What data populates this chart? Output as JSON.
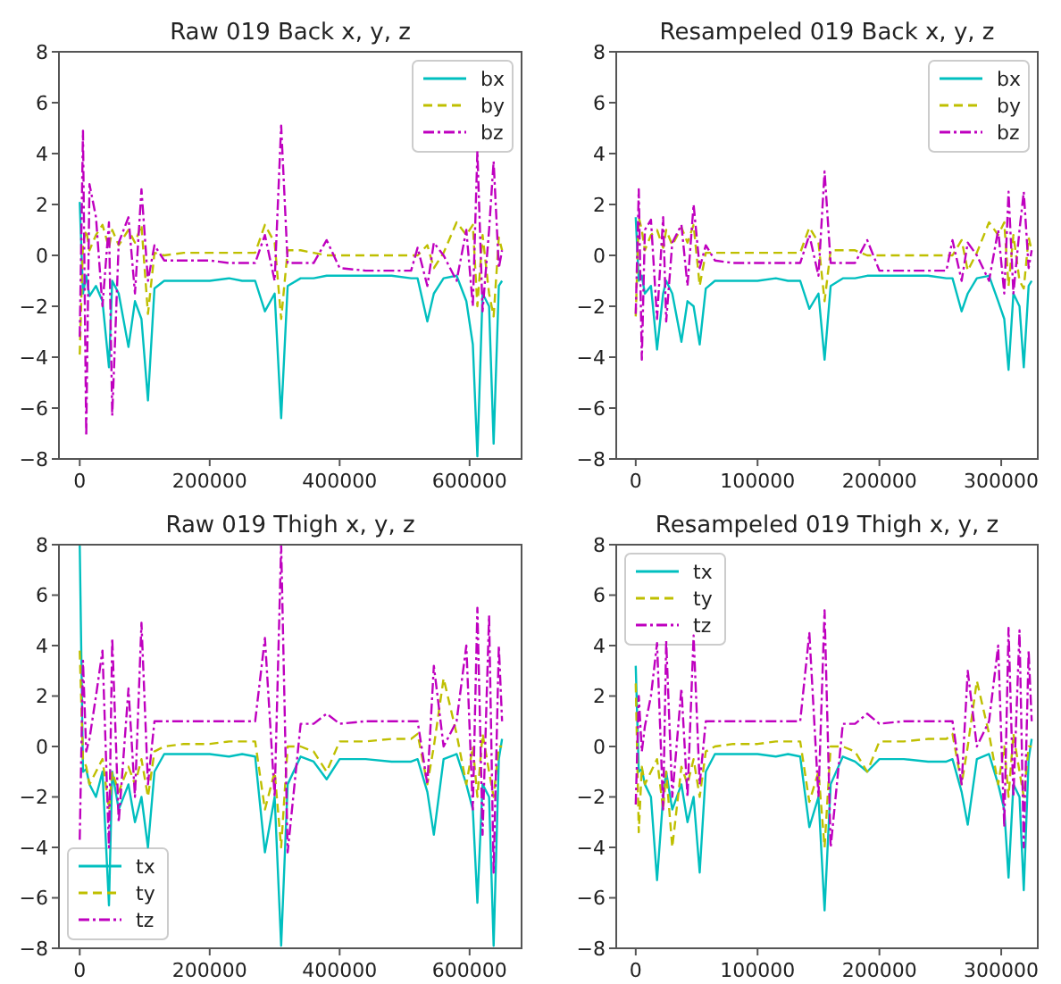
{
  "chart_data": [
    {
      "type": "line",
      "title": "Raw 019 Back x, y, z",
      "legend": "top right",
      "x": [
        0,
        5000,
        10000,
        15000,
        25000,
        35000,
        45000,
        50000,
        60000,
        75000,
        85000,
        95000,
        105000,
        115000,
        130000,
        160000,
        200000,
        230000,
        250000,
        270000,
        285000,
        300000,
        310000,
        320000,
        340000,
        360000,
        380000,
        400000,
        440000,
        480000,
        510000,
        520000,
        535000,
        545000,
        560000,
        580000,
        595000,
        605000,
        612000,
        620000,
        630000,
        637000,
        645000,
        650000
      ],
      "xlim": [
        -32000,
        680000
      ],
      "xticks": [
        0,
        200000,
        400000,
        600000
      ],
      "ylim": [
        -8,
        8
      ],
      "yticks": [
        {
          "value": -8,
          "label": "−8"
        },
        {
          "value": -6,
          "label": "−6"
        },
        {
          "value": -4,
          "label": "−4"
        },
        {
          "value": -2,
          "label": "−2"
        },
        0,
        2,
        4,
        6,
        8
      ],
      "series": [
        {
          "name": "bx",
          "color": "#00bfbf",
          "line_style": "solid",
          "values": [
            2.1,
            -1.5,
            -0.8,
            -1.6,
            -1.2,
            -1.8,
            -4.4,
            -1.0,
            -1.5,
            -3.6,
            -1.8,
            -2.5,
            -5.7,
            -1.3,
            -1.0,
            -1.0,
            -1.0,
            -0.9,
            -1.0,
            -1.0,
            -2.2,
            -1.5,
            -6.4,
            -1.2,
            -0.9,
            -0.9,
            -0.8,
            -0.8,
            -0.8,
            -0.8,
            -0.9,
            -0.9,
            -2.6,
            -1.5,
            -0.9,
            -0.8,
            -1.8,
            -3.5,
            -7.9,
            -1.5,
            -2.0,
            -7.4,
            -1.2,
            -1.0
          ]
        },
        {
          "name": "by",
          "color": "#bfbf00",
          "line_style": "dashed",
          "values": [
            -3.9,
            0.5,
            1.0,
            0.2,
            0.8,
            1.2,
            0.3,
            1.0,
            0.4,
            1.0,
            0.5,
            1.2,
            -2.3,
            0.1,
            0.0,
            0.1,
            0.1,
            0.1,
            0.1,
            0.1,
            1.2,
            0.5,
            -2.5,
            0.2,
            0.2,
            0.1,
            0.0,
            0.0,
            0.0,
            0.0,
            0.0,
            0.0,
            0.4,
            -0.5,
            0.1,
            1.3,
            0.8,
            1.2,
            -2.0,
            0.8,
            -1.5,
            -2.4,
            0.7,
            0.2
          ]
        },
        {
          "name": "bz",
          "color": "#bf00bf",
          "line_style": "dashdot",
          "values": [
            -3.2,
            4.9,
            -7.1,
            2.8,
            1.5,
            -2.0,
            1.3,
            -6.3,
            0.5,
            1.5,
            -1.5,
            2.6,
            -1.0,
            0.4,
            -0.2,
            -0.2,
            -0.2,
            -0.3,
            -0.3,
            -0.3,
            0.8,
            -1.0,
            5.1,
            -0.3,
            -0.3,
            -0.3,
            0.6,
            -0.5,
            -0.6,
            -0.6,
            -0.6,
            0.3,
            -1.2,
            0.5,
            0.0,
            -1.0,
            1.0,
            -2.0,
            4.1,
            -2.2,
            1.0,
            3.7,
            -0.5,
            0.2
          ]
        }
      ]
    },
    {
      "type": "line",
      "title": "Resampeled 019 Back x, y, z",
      "legend": "top right",
      "x": [
        0,
        2500,
        5000,
        7500,
        12500,
        17500,
        22500,
        25000,
        30000,
        37500,
        42500,
        47500,
        52500,
        57500,
        65000,
        80000,
        100000,
        115000,
        125000,
        135000,
        142500,
        150000,
        155000,
        160000,
        170000,
        180000,
        190000,
        200000,
        220000,
        240000,
        255000,
        260000,
        267500,
        272500,
        280000,
        290000,
        297500,
        302500,
        306000,
        310000,
        315000,
        318500,
        322500,
        325000
      ],
      "xlim": [
        -16000,
        330000
      ],
      "xticks": [
        0,
        100000,
        200000,
        300000
      ],
      "ylim": [
        -8,
        8
      ],
      "yticks": [
        {
          "value": -8,
          "label": "−8"
        },
        {
          "value": -6,
          "label": "−6"
        },
        {
          "value": -4,
          "label": "−4"
        },
        {
          "value": -2,
          "label": "−2"
        },
        0,
        2,
        4,
        6,
        8
      ],
      "series": [
        {
          "name": "bx",
          "color": "#00bfbf",
          "line_style": "solid",
          "values": [
            1.5,
            -1.0,
            -0.8,
            -1.5,
            -1.2,
            -3.7,
            -1.5,
            -1.0,
            -1.5,
            -3.4,
            -1.8,
            -2.0,
            -3.5,
            -1.3,
            -1.0,
            -1.0,
            -1.0,
            -0.9,
            -1.0,
            -1.0,
            -2.1,
            -1.5,
            -4.1,
            -1.2,
            -0.9,
            -0.9,
            -0.8,
            -0.8,
            -0.8,
            -0.8,
            -0.9,
            -0.9,
            -2.2,
            -1.5,
            -0.9,
            -0.8,
            -1.8,
            -2.5,
            -4.5,
            -1.5,
            -2.0,
            -4.4,
            -1.2,
            -1.0
          ]
        },
        {
          "name": "by",
          "color": "#bfbf00",
          "line_style": "dashed",
          "values": [
            -2.4,
            1.5,
            1.0,
            0.2,
            0.8,
            1.0,
            0.3,
            1.0,
            0.4,
            1.1,
            0.5,
            1.2,
            -1.2,
            0.1,
            0.1,
            0.1,
            0.1,
            0.1,
            0.1,
            0.1,
            1.1,
            0.5,
            -1.8,
            0.2,
            0.2,
            0.2,
            0.0,
            0.0,
            0.0,
            0.0,
            0.0,
            0.0,
            0.6,
            -0.6,
            0.1,
            1.3,
            0.8,
            1.3,
            -1.2,
            0.8,
            -1.0,
            -1.3,
            0.7,
            0.2
          ]
        },
        {
          "name": "bz",
          "color": "#bf00bf",
          "line_style": "dashdot",
          "values": [
            -2.3,
            2.6,
            -4.1,
            1.0,
            1.4,
            -2.5,
            1.5,
            -2.6,
            0.5,
            1.2,
            -1.2,
            2.0,
            -0.5,
            0.4,
            -0.2,
            -0.3,
            -0.3,
            -0.3,
            -0.3,
            -0.3,
            0.8,
            -0.8,
            3.3,
            -0.3,
            -0.3,
            -0.3,
            0.6,
            -0.6,
            -0.6,
            -0.6,
            -0.6,
            0.6,
            -1.0,
            0.5,
            0.0,
            -1.0,
            1.0,
            -1.5,
            2.5,
            -1.5,
            1.0,
            2.5,
            -0.5,
            0.2
          ]
        }
      ]
    },
    {
      "type": "line",
      "title": "Raw 019 Thigh x, y, z",
      "legend": "bottom left",
      "x": [
        0,
        5000,
        10000,
        15000,
        25000,
        35000,
        45000,
        50000,
        60000,
        75000,
        85000,
        95000,
        105000,
        115000,
        130000,
        160000,
        200000,
        230000,
        250000,
        270000,
        285000,
        300000,
        310000,
        320000,
        340000,
        360000,
        380000,
        400000,
        440000,
        480000,
        510000,
        520000,
        535000,
        545000,
        560000,
        580000,
        595000,
        605000,
        612000,
        620000,
        630000,
        637000,
        645000,
        650000
      ],
      "xlim": [
        -32000,
        680000
      ],
      "xticks": [
        0,
        200000,
        400000,
        600000
      ],
      "ylim": [
        -8,
        8
      ],
      "yticks": [
        {
          "value": -8,
          "label": "−8"
        },
        {
          "value": -6,
          "label": "−6"
        },
        {
          "value": -4,
          "label": "−4"
        },
        {
          "value": -2,
          "label": "−2"
        },
        0,
        2,
        4,
        6,
        8
      ],
      "series": [
        {
          "name": "tx",
          "color": "#00bfbf",
          "line_style": "solid",
          "values": [
            8.0,
            -1.0,
            -0.9,
            -1.5,
            -2.0,
            -1.0,
            -6.3,
            -1.0,
            -2.5,
            -1.5,
            -3.0,
            -2.0,
            -4.0,
            -1.0,
            -0.3,
            -0.3,
            -0.3,
            -0.4,
            -0.3,
            -0.4,
            -4.2,
            -2.0,
            -7.9,
            -1.5,
            -0.4,
            -0.6,
            -1.3,
            -0.5,
            -0.5,
            -0.6,
            -0.6,
            -0.5,
            -1.8,
            -3.5,
            -0.5,
            -0.3,
            -1.5,
            -2.5,
            -6.2,
            -1.5,
            -2.0,
            -7.9,
            -0.5,
            0.3
          ]
        },
        {
          "name": "ty",
          "color": "#bfbf00",
          "line_style": "dashed",
          "values": [
            3.8,
            -0.5,
            -0.8,
            -1.5,
            -1.0,
            -0.5,
            -2.5,
            -1.0,
            -1.8,
            -0.8,
            -1.5,
            -0.5,
            -2.0,
            -0.2,
            0.0,
            0.1,
            0.1,
            0.2,
            0.2,
            0.2,
            -2.5,
            -1.0,
            -4.0,
            0.0,
            0.0,
            -0.2,
            -1.0,
            0.2,
            0.2,
            0.3,
            0.3,
            0.5,
            -1.5,
            0.0,
            2.7,
            0.5,
            -1.5,
            0.0,
            -2.0,
            0.5,
            -1.0,
            -2.0,
            0.0,
            0.0
          ]
        },
        {
          "name": "tz",
          "color": "#bf00bf",
          "line_style": "dashdot",
          "values": [
            -3.7,
            3.4,
            -0.2,
            0.3,
            2.0,
            3.8,
            -4.0,
            4.3,
            -3.0,
            2.3,
            -2.0,
            4.9,
            -1.5,
            1.0,
            1.0,
            1.0,
            1.0,
            1.0,
            1.0,
            1.0,
            4.3,
            -2.0,
            8.0,
            -4.2,
            0.9,
            0.9,
            1.3,
            0.9,
            1.0,
            1.0,
            1.0,
            1.0,
            -1.5,
            3.2,
            0.0,
            1.0,
            4.0,
            -2.5,
            5.5,
            -3.5,
            5.2,
            -5.0,
            4.0,
            1.0
          ]
        }
      ]
    },
    {
      "type": "line",
      "title": "Resampeled 019 Thigh x, y, z",
      "legend": "top left",
      "x": [
        0,
        2500,
        5000,
        7500,
        12500,
        17500,
        22500,
        25000,
        30000,
        37500,
        42500,
        47500,
        52500,
        57500,
        65000,
        80000,
        100000,
        115000,
        125000,
        135000,
        142500,
        150000,
        155000,
        160000,
        170000,
        180000,
        190000,
        200000,
        220000,
        240000,
        255000,
        260000,
        267500,
        272500,
        280000,
        290000,
        297500,
        302500,
        306000,
        310000,
        315000,
        318500,
        322500,
        325000
      ],
      "xlim": [
        -16000,
        330000
      ],
      "xticks": [
        0,
        100000,
        200000,
        300000
      ],
      "ylim": [
        -8,
        8
      ],
      "yticks": [
        {
          "value": -8,
          "label": "−8"
        },
        {
          "value": -6,
          "label": "−6"
        },
        {
          "value": -4,
          "label": "−4"
        },
        {
          "value": -2,
          "label": "−2"
        },
        0,
        2,
        4,
        6,
        8
      ],
      "series": [
        {
          "name": "tx",
          "color": "#00bfbf",
          "line_style": "solid",
          "values": [
            3.2,
            -1.0,
            -0.9,
            -1.5,
            -2.0,
            -5.3,
            -2.0,
            -1.0,
            -2.5,
            -1.5,
            -3.0,
            -2.0,
            -5.0,
            -1.0,
            -0.3,
            -0.3,
            -0.3,
            -0.4,
            -0.3,
            -0.4,
            -3.2,
            -2.0,
            -6.5,
            -1.5,
            -0.4,
            -0.6,
            -1.0,
            -0.5,
            -0.5,
            -0.6,
            -0.6,
            -0.5,
            -1.8,
            -3.1,
            -0.5,
            -0.3,
            -1.5,
            -2.5,
            -5.2,
            -1.5,
            -2.0,
            -5.7,
            -0.5,
            0.3
          ]
        },
        {
          "name": "ty",
          "color": "#bfbf00",
          "line_style": "dashed",
          "values": [
            2.5,
            -3.4,
            -0.8,
            -1.5,
            -1.0,
            -0.5,
            -2.5,
            -1.0,
            -4.0,
            -0.8,
            -1.5,
            -0.5,
            -2.0,
            -0.2,
            0.0,
            0.1,
            0.1,
            0.2,
            0.2,
            0.2,
            -2.2,
            -1.0,
            -4.0,
            0.0,
            0.0,
            -0.2,
            -1.0,
            0.2,
            0.2,
            0.3,
            0.3,
            0.5,
            -1.5,
            0.0,
            2.6,
            0.5,
            -1.5,
            0.0,
            -2.0,
            0.5,
            -1.0,
            -2.0,
            0.0,
            0.0
          ]
        },
        {
          "name": "tz",
          "color": "#bf00bf",
          "line_style": "dashdot",
          "values": [
            -2.3,
            2.0,
            -0.2,
            0.8,
            2.0,
            4.1,
            -2.5,
            4.2,
            -2.0,
            2.3,
            -2.0,
            4.4,
            -1.5,
            1.0,
            1.0,
            1.0,
            1.0,
            1.0,
            1.0,
            1.0,
            4.5,
            -2.0,
            5.4,
            -4.0,
            0.9,
            0.9,
            1.3,
            0.9,
            1.0,
            1.0,
            1.0,
            1.0,
            -1.5,
            3.0,
            0.0,
            1.0,
            4.0,
            -3.2,
            4.7,
            -2.0,
            4.6,
            -4.0,
            3.8,
            1.0
          ]
        }
      ]
    }
  ]
}
